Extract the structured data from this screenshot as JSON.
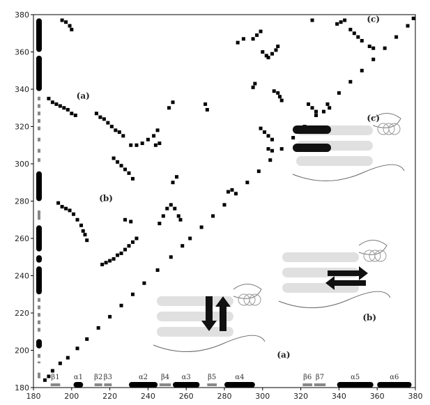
{
  "chart_data": {
    "type": "scatter",
    "title": "",
    "xlabel": "",
    "ylabel": "",
    "xlim": [
      180,
      380
    ],
    "ylim": [
      180,
      380
    ],
    "x_ticks": [
      "180",
      "200",
      "220",
      "240",
      "260",
      "280",
      "300",
      "320",
      "340",
      "360",
      "380"
    ],
    "y_ticks": [
      "180",
      "200",
      "220",
      "240",
      "260",
      "280",
      "300",
      "320",
      "340",
      "360",
      "380"
    ],
    "grid": false,
    "annotations": [
      {
        "text": "(a)",
        "x": 206,
        "y": 335
      },
      {
        "text": "(b)",
        "x": 218,
        "y": 280
      },
      {
        "text": "(c)",
        "x": 358,
        "y": 376
      },
      {
        "text": "(c)",
        "x": 358,
        "y": 323
      },
      {
        "text": "(b)",
        "x": 356,
        "y": 216
      },
      {
        "text": "(a)",
        "x": 311,
        "y": 196
      }
    ],
    "secondary_structure": [
      {
        "label": "β1",
        "start": 189,
        "end": 194,
        "kind": "strand"
      },
      {
        "label": "α1",
        "start": 201,
        "end": 206,
        "kind": "helix"
      },
      {
        "label": "β2",
        "start": 212,
        "end": 216,
        "kind": "strand"
      },
      {
        "label": "β3",
        "start": 217,
        "end": 221,
        "kind": "strand"
      },
      {
        "label": "α2",
        "start": 230,
        "end": 245,
        "kind": "helix"
      },
      {
        "label": "β4",
        "start": 246,
        "end": 252,
        "kind": "strand"
      },
      {
        "label": "α3",
        "start": 253,
        "end": 267,
        "kind": "helix"
      },
      {
        "label": "β5",
        "start": 271,
        "end": 276,
        "kind": "strand"
      },
      {
        "label": "α4",
        "start": 280,
        "end": 296,
        "kind": "helix"
      },
      {
        "label": "β6",
        "start": 321,
        "end": 326,
        "kind": "strand"
      },
      {
        "label": "β7",
        "start": 327,
        "end": 333,
        "kind": "strand"
      },
      {
        "label": "α5",
        "start": 339,
        "end": 358,
        "kind": "helix"
      },
      {
        "label": "α6",
        "start": 360,
        "end": 378,
        "kind": "helix"
      }
    ],
    "contact_series": [
      {
        "points": [
          [
            186,
            184
          ],
          [
            188,
            186
          ],
          [
            190,
            189
          ],
          [
            194,
            193
          ],
          [
            198,
            196
          ],
          [
            203,
            201
          ],
          [
            208,
            206
          ],
          [
            214,
            212
          ],
          [
            220,
            218
          ],
          [
            226,
            224
          ],
          [
            232,
            230
          ],
          [
            238,
            236
          ],
          [
            245,
            243
          ],
          [
            252,
            250
          ],
          [
            258,
            256
          ],
          [
            262,
            260
          ],
          [
            268,
            266
          ],
          [
            274,
            272
          ],
          [
            280,
            278
          ],
          [
            286,
            284
          ],
          [
            292,
            290
          ],
          [
            298,
            296
          ],
          [
            304,
            302
          ],
          [
            310,
            308
          ],
          [
            316,
            314
          ],
          [
            322,
            320
          ],
          [
            328,
            326
          ],
          [
            334,
            332
          ],
          [
            340,
            338
          ],
          [
            346,
            344
          ],
          [
            352,
            350
          ],
          [
            358,
            356
          ],
          [
            364,
            362
          ],
          [
            370,
            368
          ],
          [
            376,
            374
          ],
          [
            379,
            378
          ]
        ]
      },
      {
        "points": [
          [
            188,
            335
          ],
          [
            190,
            333
          ],
          [
            192,
            332
          ],
          [
            194,
            331
          ],
          [
            196,
            330
          ],
          [
            198,
            329
          ],
          [
            200,
            327
          ],
          [
            202,
            326
          ],
          [
            213,
            327
          ],
          [
            215,
            325
          ],
          [
            217,
            324
          ],
          [
            219,
            322
          ],
          [
            221,
            320
          ],
          [
            223,
            318
          ],
          [
            225,
            317
          ],
          [
            227,
            315
          ],
          [
            231,
            310
          ],
          [
            234,
            310
          ],
          [
            237,
            311
          ],
          [
            240,
            313
          ],
          [
            243,
            315
          ],
          [
            245,
            318
          ]
        ]
      },
      {
        "points": [
          [
            193,
            279
          ],
          [
            195,
            277
          ],
          [
            197,
            276
          ],
          [
            199,
            275
          ],
          [
            201,
            273
          ],
          [
            203,
            270
          ],
          [
            205,
            267
          ],
          [
            206,
            264
          ],
          [
            207,
            262
          ],
          [
            208,
            259
          ],
          [
            216,
            246
          ],
          [
            218,
            247
          ],
          [
            220,
            248
          ],
          [
            222,
            249
          ],
          [
            224,
            251
          ],
          [
            226,
            252
          ],
          [
            228,
            254
          ],
          [
            230,
            256
          ],
          [
            232,
            258
          ],
          [
            234,
            260
          ],
          [
            222,
            303
          ],
          [
            224,
            301
          ],
          [
            226,
            299
          ],
          [
            228,
            297
          ],
          [
            230,
            295
          ],
          [
            232,
            292
          ],
          [
            228,
            270
          ],
          [
            231,
            269
          ]
        ]
      },
      {
        "points": [
          [
            246,
            268
          ],
          [
            248,
            272
          ],
          [
            250,
            276
          ],
          [
            252,
            278
          ],
          [
            254,
            276
          ],
          [
            256,
            272
          ],
          [
            257,
            270
          ],
          [
            253,
            290
          ],
          [
            255,
            293
          ],
          [
            251,
            330
          ],
          [
            253,
            333
          ],
          [
            244,
            310
          ],
          [
            246,
            311
          ]
        ]
      },
      {
        "points": [
          [
            295,
            367
          ],
          [
            297,
            369
          ],
          [
            299,
            371
          ],
          [
            287,
            365
          ],
          [
            290,
            367
          ],
          [
            303,
            357
          ],
          [
            305,
            359
          ],
          [
            307,
            361
          ],
          [
            308,
            363
          ],
          [
            306,
            339
          ],
          [
            308,
            338
          ],
          [
            309,
            336
          ],
          [
            310,
            334
          ],
          [
            300,
            360
          ],
          [
            302,
            358
          ],
          [
            295,
            341
          ],
          [
            296,
            343
          ],
          [
            270,
            332
          ],
          [
            271,
            329
          ],
          [
            282,
            285
          ],
          [
            284,
            286
          ],
          [
            299,
            319
          ],
          [
            301,
            317
          ],
          [
            303,
            315
          ],
          [
            305,
            313
          ],
          [
            303,
            308
          ],
          [
            305,
            307
          ],
          [
            324,
            332
          ],
          [
            326,
            330
          ],
          [
            328,
            328
          ],
          [
            332,
            328
          ],
          [
            335,
            330
          ],
          [
            346,
            372
          ],
          [
            348,
            370
          ],
          [
            350,
            368
          ],
          [
            352,
            366
          ],
          [
            356,
            363
          ],
          [
            358,
            362
          ],
          [
            339,
            375
          ],
          [
            341,
            376
          ],
          [
            343,
            377
          ],
          [
            326,
            377
          ],
          [
            195,
            377
          ],
          [
            197,
            376
          ],
          [
            199,
            374
          ],
          [
            200,
            372
          ]
        ]
      }
    ],
    "left_bar": [
      {
        "start": 185,
        "end": 188,
        "kind": "strand"
      },
      {
        "start": 193,
        "end": 194,
        "kind": "strand"
      },
      {
        "start": 196,
        "end": 198,
        "kind": "strand"
      },
      {
        "start": 201,
        "end": 206,
        "kind": "helix"
      },
      {
        "start": 210,
        "end": 212,
        "kind": "strand"
      },
      {
        "start": 214,
        "end": 216,
        "kind": "strand"
      },
      {
        "start": 218,
        "end": 220,
        "kind": "strand"
      },
      {
        "start": 222,
        "end": 224,
        "kind": "strand"
      },
      {
        "start": 226,
        "end": 228,
        "kind": "strand"
      },
      {
        "start": 230,
        "end": 245,
        "kind": "helix"
      },
      {
        "start": 247,
        "end": 251,
        "kind": "helix"
      },
      {
        "start": 253,
        "end": 267,
        "kind": "helix"
      },
      {
        "start": 270,
        "end": 275,
        "kind": "strand"
      },
      {
        "start": 280,
        "end": 296,
        "kind": "helix"
      },
      {
        "start": 301,
        "end": 303,
        "kind": "strand"
      },
      {
        "start": 306,
        "end": 308,
        "kind": "strand"
      },
      {
        "start": 312,
        "end": 314,
        "kind": "strand"
      },
      {
        "start": 318,
        "end": 320,
        "kind": "strand"
      },
      {
        "start": 322,
        "end": 324,
        "kind": "strand"
      },
      {
        "start": 326,
        "end": 328,
        "kind": "strand"
      },
      {
        "start": 330,
        "end": 332,
        "kind": "strand"
      },
      {
        "start": 334,
        "end": 336,
        "kind": "strand"
      },
      {
        "start": 339,
        "end": 358,
        "kind": "helix"
      },
      {
        "start": 360,
        "end": 378,
        "kind": "helix"
      }
    ],
    "structure_insets": [
      "(c)",
      "(b)",
      "(a)"
    ],
    "colors": {
      "axis": "#000000",
      "points": "#000000",
      "secondary": "#888888",
      "helix": "#000000"
    }
  }
}
